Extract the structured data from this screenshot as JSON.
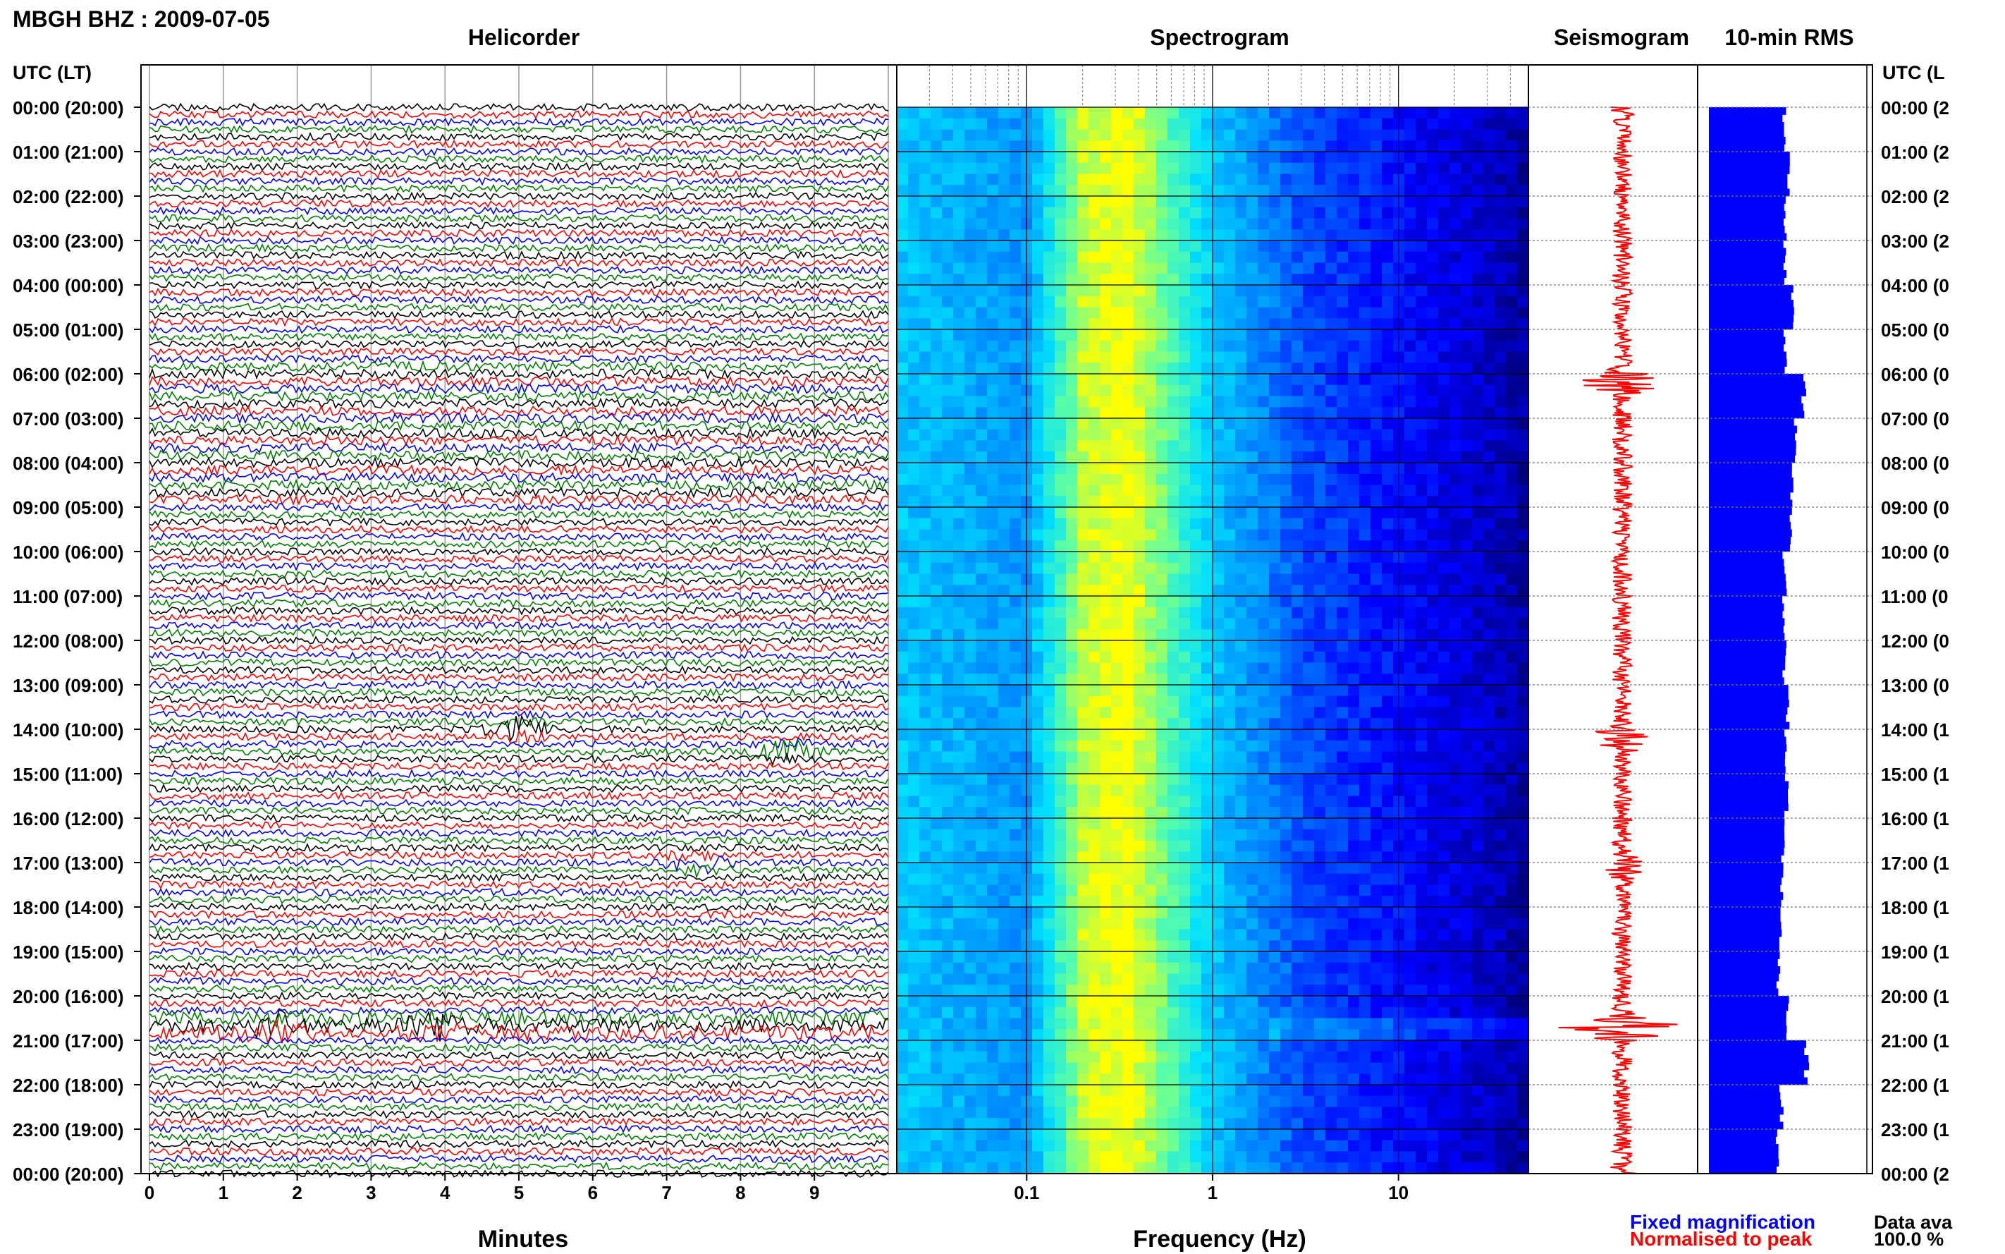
{
  "header": {
    "station_title": "MBGH BHZ : 2009-07-05",
    "panel_titles": {
      "helicorder": "Helicorder",
      "spectrogram": "Spectrogram",
      "seismogram": "Seismogram",
      "rms": "10-min RMS"
    },
    "time_axis_label_left": "UTC (LT)",
    "time_axis_label_right": "UTC (L"
  },
  "footer": {
    "xlabel_helicorder": "Minutes",
    "xlabel_spectrogram": "Frequency (Hz)",
    "legend_fixed": "Fixed magnification",
    "legend_normalised": "Normalised to peak",
    "data_available_label": "Data ava",
    "data_available_value": "100.0 %",
    "colors": {
      "fixed": "#0000ff",
      "normalised": "#ff0000"
    }
  },
  "chart_data": [
    {
      "type": "line",
      "panel": "helicorder",
      "title": "Helicorder",
      "xlabel": "Minutes",
      "xticks": [
        "0",
        "1",
        "2",
        "3",
        "4",
        "5",
        "6",
        "7",
        "8",
        "9"
      ],
      "xlim": [
        0,
        10
      ],
      "hour_labels": [
        "00:00 (20:00)",
        "01:00 (21:00)",
        "02:00 (22:00)",
        "03:00 (23:00)",
        "04:00 (00:00)",
        "05:00 (01:00)",
        "06:00 (02:00)",
        "07:00 (03:00)",
        "08:00 (04:00)",
        "09:00 (05:00)",
        "10:00 (06:00)",
        "11:00 (07:00)",
        "12:00 (08:00)",
        "13:00 (09:00)",
        "14:00 (10:00)",
        "15:00 (11:00)",
        "16:00 (12:00)",
        "17:00 (13:00)",
        "18:00 (14:00)",
        "19:00 (15:00)",
        "20:00 (16:00)",
        "21:00 (17:00)",
        "22:00 (18:00)",
        "23:00 (19:00)",
        "00:00 (20:00)"
      ],
      "right_hour_labels": [
        "00:00 (2",
        "01:00 (2",
        "02:00 (2",
        "03:00 (2",
        "04:00 (0",
        "05:00 (0",
        "06:00 (0",
        "07:00 (0",
        "08:00 (0",
        "09:00 (0",
        "10:00 (0",
        "11:00 (0",
        "12:00 (0",
        "13:00 (0",
        "14:00 (1",
        "15:00 (1",
        "16:00 (1",
        "17:00 (1",
        "18:00 (1",
        "19:00 (1",
        "20:00 (1",
        "21:00 (1",
        "22:00 (1",
        "23:00 (1",
        "00:00 (2"
      ],
      "traces_per_hour": 6,
      "trace_colors": [
        "#000000",
        "#ff0000",
        "#0000ff",
        "#008000"
      ],
      "events": [
        {
          "hour": 20.7,
          "minute": 1.7
        },
        {
          "hour": 20.7,
          "minute": 3.9
        },
        {
          "hour": 14.0,
          "minute": 5.0
        },
        {
          "hour": 14.5,
          "minute": 8.6
        },
        {
          "hour": 17.0,
          "minute": 7.4
        }
      ]
    },
    {
      "type": "heatmap",
      "panel": "spectrogram",
      "title": "Spectrogram",
      "xlabel": "Frequency (Hz)",
      "xscale": "log",
      "xlim": [
        0.02,
        50
      ],
      "xticks": [
        "0.1",
        "1",
        "10"
      ],
      "colormap": [
        "#00007a",
        "#0000ff",
        "#0080ff",
        "#00e0ff",
        "#60ffa0",
        "#ffff00"
      ],
      "average_level": [
        {
          "frequency": 0.02,
          "level": 0.55
        },
        {
          "frequency": 0.1,
          "level": 0.45
        },
        {
          "frequency": 0.2,
          "level": 0.92
        },
        {
          "frequency": 0.35,
          "level": 1.0
        },
        {
          "frequency": 1,
          "level": 0.55
        },
        {
          "frequency": 3,
          "level": 0.32
        },
        {
          "frequency": 10,
          "level": 0.22
        },
        {
          "frequency": 30,
          "level": 0.12
        },
        {
          "frequency": 50,
          "level": 0.05
        }
      ]
    },
    {
      "type": "line",
      "panel": "seismogram",
      "title": "Seismogram",
      "color": "#ff0000",
      "series": [
        {
          "name": "Normalised to peak",
          "x": [
            0,
            6.2,
            14.2,
            17.1,
            20.7,
            24
          ],
          "values": [
            0.1,
            0.55,
            0.45,
            0.25,
            1.0,
            0.1
          ]
        }
      ]
    },
    {
      "type": "bar",
      "panel": "rms",
      "title": "10-min RMS",
      "color": "#0000ff",
      "orientation": "horizontal",
      "hours": [
        0,
        1,
        2,
        3,
        4,
        5,
        6,
        7,
        8,
        9,
        10,
        11,
        12,
        13,
        14,
        15,
        16,
        17,
        18,
        19,
        20,
        21,
        22,
        23
      ],
      "values": [
        0.48,
        0.5,
        0.48,
        0.48,
        0.53,
        0.48,
        0.6,
        0.55,
        0.53,
        0.52,
        0.48,
        0.47,
        0.48,
        0.5,
        0.49,
        0.49,
        0.47,
        0.46,
        0.45,
        0.44,
        0.5,
        0.62,
        0.46,
        0.43
      ]
    }
  ]
}
